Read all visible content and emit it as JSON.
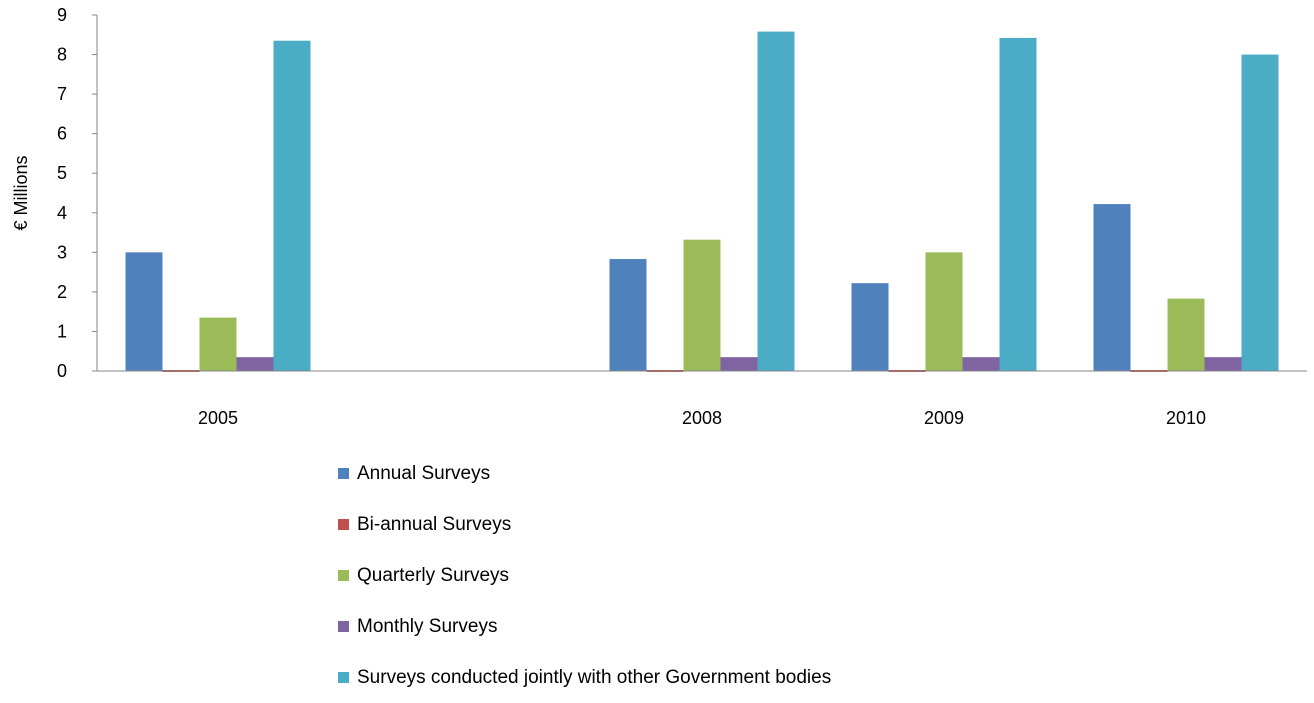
{
  "chart_data": {
    "type": "bar",
    "title": "",
    "xlabel": "",
    "ylabel": "€ Millions",
    "ylim": [
      0,
      9
    ],
    "yticks": [
      0,
      1,
      2,
      3,
      4,
      5,
      6,
      7,
      8,
      9
    ],
    "categories": [
      "2005",
      "",
      "2008",
      "2009",
      "2010"
    ],
    "grid": false,
    "legend_position": "bottom",
    "series": [
      {
        "name": "Annual Surveys",
        "color": "#4F81BD",
        "values": [
          3.0,
          null,
          2.83,
          2.22,
          4.22
        ]
      },
      {
        "name": "Bi-annual Surveys",
        "color": "#C0504D",
        "values": [
          0.0,
          null,
          0.0,
          0.0,
          0.0
        ]
      },
      {
        "name": "Quarterly Surveys",
        "color": "#9BBB59",
        "values": [
          1.35,
          null,
          3.32,
          3.0,
          1.83
        ]
      },
      {
        "name": "Monthly Surveys",
        "color": "#8064A2",
        "values": [
          0.35,
          null,
          0.35,
          0.35,
          0.35
        ]
      },
      {
        "name": "Surveys conducted jointly with other Government bodies",
        "color": "#4BACC6",
        "values": [
          8.35,
          null,
          8.58,
          8.42,
          8.0
        ]
      }
    ]
  }
}
